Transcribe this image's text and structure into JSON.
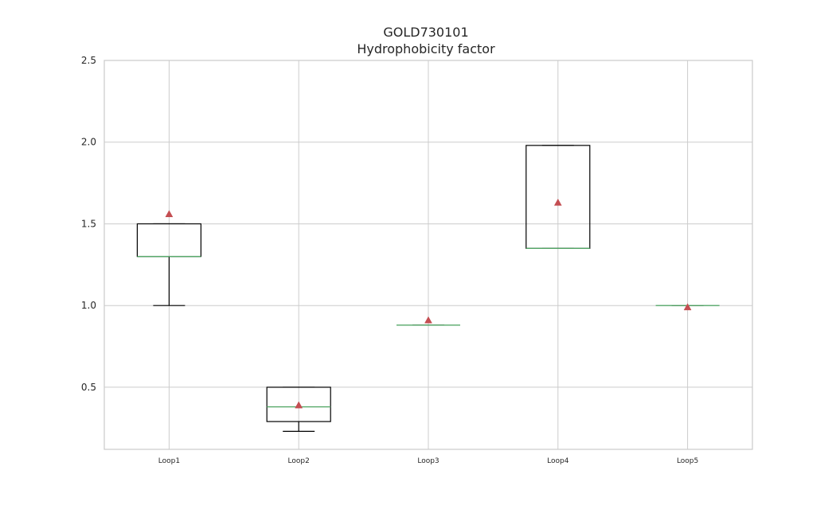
{
  "chart_data": {
    "type": "box",
    "title": "GOLD730101",
    "subtitle": "Hydrophobicity factor",
    "xlabel": "",
    "ylabel": "",
    "categories": [
      "Loop1",
      "Loop2",
      "Loop3",
      "Loop4",
      "Loop5"
    ],
    "ylim": [
      0.12,
      2.5
    ],
    "yticks": [
      0.5,
      1.0,
      1.5,
      2.0,
      2.5
    ],
    "ytick_labels": [
      "0.5",
      "1.0",
      "1.5",
      "2.0",
      "2.5"
    ],
    "grid": true,
    "boxes": [
      {
        "name": "Loop1",
        "whislo": 1.0,
        "q1": 1.3,
        "med": 1.3,
        "q3": 1.5,
        "whishi": 1.5,
        "mean": 1.56
      },
      {
        "name": "Loop2",
        "whislo": 0.23,
        "q1": 0.29,
        "med": 0.38,
        "q3": 0.5,
        "whishi": 0.5,
        "mean": 0.39
      },
      {
        "name": "Loop3",
        "whislo": 0.88,
        "q1": 0.88,
        "med": 0.88,
        "q3": 0.88,
        "whishi": 0.88,
        "mean": 0.91
      },
      {
        "name": "Loop4",
        "whislo": 1.35,
        "q1": 1.35,
        "med": 1.35,
        "q3": 1.98,
        "whishi": 1.98,
        "mean": 1.63
      },
      {
        "name": "Loop5",
        "whislo": 1.0,
        "q1": 1.0,
        "med": 1.0,
        "q3": 1.0,
        "whishi": 1.0,
        "mean": 0.99
      }
    ],
    "colors": {
      "box": "#000000",
      "median": "#55a868",
      "mean_marker": "#c44e52",
      "grid": "#cccccc",
      "axes_edge": "#cccccc",
      "text": "#262626"
    }
  }
}
